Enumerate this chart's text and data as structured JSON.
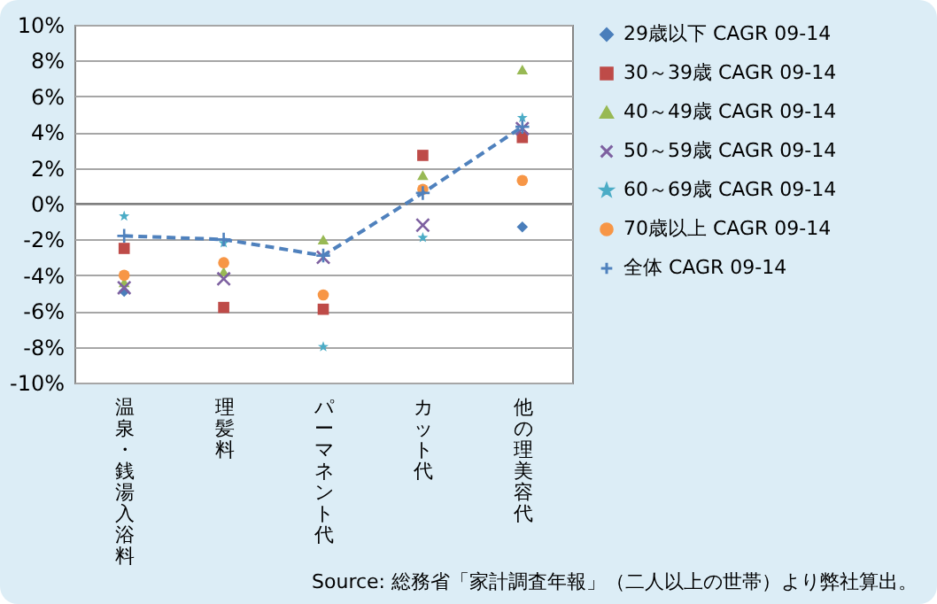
{
  "chart_data": {
    "type": "scatter",
    "categories": [
      "温泉・銭湯入浴料",
      "理髪料",
      "パーマネント代",
      "カット代",
      "他の理美容代"
    ],
    "ylim": [
      -10,
      10
    ],
    "yticks": [
      {
        "value": -10,
        "label": "-10%"
      },
      {
        "value": -8,
        "label": "-8%"
      },
      {
        "value": -6,
        "label": "-6%"
      },
      {
        "value": -4,
        "label": "-4%"
      },
      {
        "value": -2,
        "label": "-2%"
      },
      {
        "value": 0,
        "label": "0%"
      },
      {
        "value": 2,
        "label": "2%"
      },
      {
        "value": 4,
        "label": "4%"
      },
      {
        "value": 6,
        "label": "6%"
      },
      {
        "value": 8,
        "label": "8%"
      },
      {
        "value": 10,
        "label": "10%"
      }
    ],
    "grid": "y",
    "legend": "right",
    "annotations": [
      "Source: 総務省「家計調査年報」（二人以上の世帯）より弊社算出。"
    ],
    "series": [
      {
        "name": "29歳以下 CAGR 09-14",
        "marker": "diamond",
        "color": "#4a7ebb",
        "values": [
          -4.9,
          null,
          null,
          null,
          -1.3
        ]
      },
      {
        "name": "30～39歳 CAGR 09-14",
        "marker": "square",
        "color": "#be4b48",
        "values": [
          -2.5,
          -5.8,
          -5.9,
          2.7,
          3.7
        ]
      },
      {
        "name": "40～49歳 CAGR 09-14",
        "marker": "triangle",
        "color": "#98b954",
        "values": [
          -4.4,
          -3.8,
          -2.0,
          1.6,
          7.5
        ]
      },
      {
        "name": "50～59歳 CAGR 09-14",
        "marker": "cross",
        "color": "#7d60a0",
        "values": [
          -4.7,
          -4.2,
          -3.0,
          -1.2,
          4.2
        ]
      },
      {
        "name": "60～69歳 CAGR 09-14",
        "marker": "star",
        "color": "#4bacc6",
        "values": [
          -0.7,
          -2.2,
          -8.0,
          -1.9,
          4.8
        ]
      },
      {
        "name": "70歳以上 CAGR 09-14",
        "marker": "circle",
        "color": "#f79646",
        "values": [
          -4.0,
          -3.3,
          -5.1,
          0.8,
          1.3
        ]
      },
      {
        "name": "全体 CAGR 09-14",
        "type": "line",
        "marker": "cross",
        "line_style": "dashed",
        "color": "#4f81bd",
        "values": [
          -1.8,
          -2.0,
          -2.9,
          0.6,
          4.3
        ]
      }
    ]
  }
}
